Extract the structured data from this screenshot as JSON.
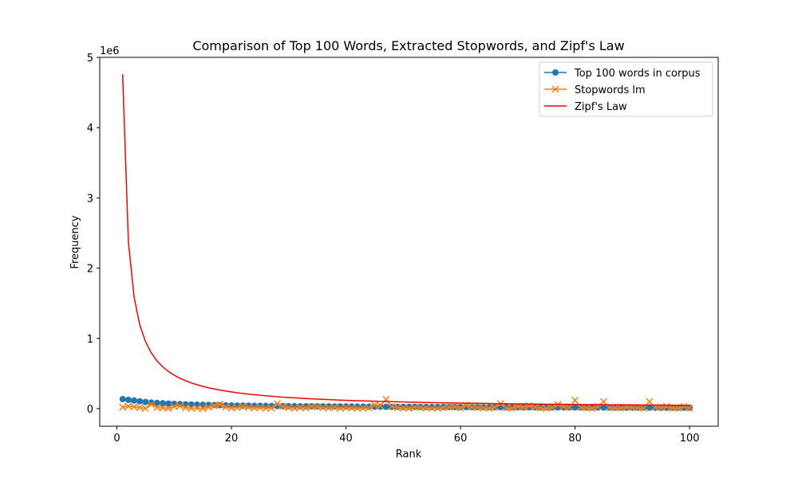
{
  "chart_data": {
    "type": "line",
    "title": "Comparison of Top 100 Words, Extracted Stopwords, and Zipf's Law",
    "xlabel": "Rank",
    "ylabel": "Frequency",
    "y_scale_label": "1e6",
    "xlim": [
      -3,
      105
    ],
    "ylim": [
      -250000,
      5000000
    ],
    "x_ticks": [
      0,
      20,
      40,
      60,
      80,
      100
    ],
    "y_ticks": [
      0,
      1000000,
      2000000,
      3000000,
      4000000,
      5000000
    ],
    "y_tick_labels": [
      "0",
      "1",
      "2",
      "3",
      "4",
      "5"
    ],
    "legend_position": "top-right",
    "zipf_constant": 4760000,
    "series": [
      {
        "name": "Top 100 words in corpus",
        "color": "#1f77b4",
        "marker": "circle",
        "values": [
          135000,
          125000,
          115000,
          105000,
          95000,
          88000,
          82000,
          77000,
          72000,
          68000,
          65000,
          62000,
          59000,
          57000,
          55000,
          53000,
          51000,
          49000,
          47000,
          45000,
          44000,
          43000,
          42000,
          41000,
          40000,
          39000,
          38000,
          37000,
          36000,
          35000,
          34500,
          34000,
          33500,
          33000,
          32500,
          32000,
          31500,
          31000,
          30500,
          30000,
          29500,
          29000,
          28500,
          28000,
          27500,
          27000,
          26500,
          26000,
          25500,
          25000,
          24700,
          24400,
          24100,
          23800,
          23500,
          23200,
          22900,
          22600,
          22300,
          22000,
          21700,
          21400,
          21100,
          20800,
          20500,
          20200,
          19900,
          19600,
          19300,
          19000,
          18800,
          18600,
          18400,
          18200,
          18000,
          17800,
          17600,
          17400,
          17200,
          17000,
          16800,
          16600,
          16400,
          16200,
          16000,
          15800,
          15600,
          15400,
          15200,
          15000,
          14800,
          14600,
          14400,
          14200,
          14000,
          13800,
          13600,
          13400,
          13200,
          13000
        ]
      },
      {
        "name": "Stopwords lm",
        "color": "#ff7f0e",
        "marker": "x",
        "values": [
          20000,
          35000,
          25000,
          15000,
          5000,
          60000,
          20000,
          10000,
          5000,
          30000,
          40000,
          15000,
          5000,
          8000,
          3000,
          20000,
          40000,
          60000,
          25000,
          10000,
          15000,
          30000,
          20000,
          10000,
          15000,
          5000,
          10000,
          70000,
          30000,
          15000,
          5000,
          20000,
          10000,
          30000,
          25000,
          15000,
          10000,
          20000,
          5000,
          15000,
          10000,
          5000,
          8000,
          12000,
          50000,
          40000,
          130000,
          30000,
          15000,
          10000,
          5000,
          20000,
          15000,
          10000,
          8000,
          5000,
          15000,
          20000,
          25000,
          10000,
          50000,
          20000,
          15000,
          10000,
          5000,
          20000,
          70000,
          10000,
          5000,
          30000,
          15000,
          40000,
          20000,
          10000,
          5000,
          15000,
          60000,
          30000,
          20000,
          120000,
          15000,
          10000,
          5000,
          30000,
          100000,
          15000,
          10000,
          8000,
          20000,
          15000,
          10000,
          5000,
          100000,
          20000,
          15000,
          30000,
          10000,
          5000,
          30000,
          10000
        ]
      },
      {
        "name": "Zipf's Law",
        "color": "#ff0000",
        "marker": "none",
        "values": []
      }
    ]
  }
}
